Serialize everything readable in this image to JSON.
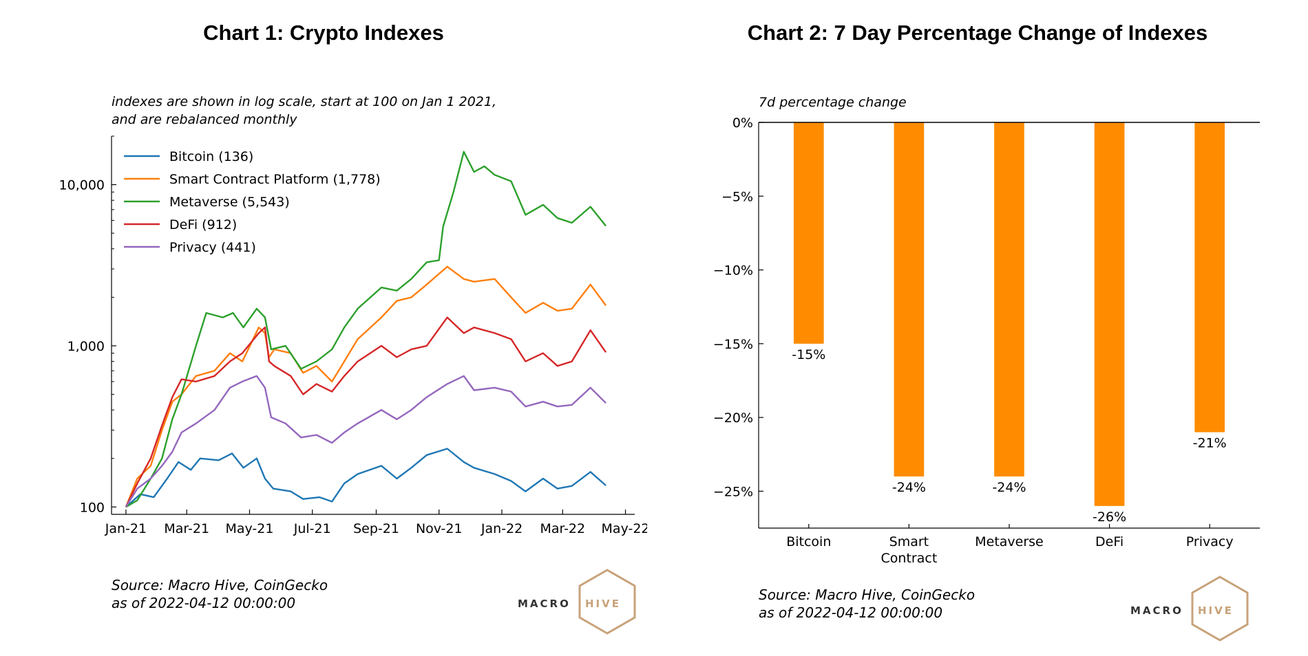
{
  "chart_data": [
    {
      "type": "line",
      "title": "Chart 1: Crypto Indexes",
      "subtitle": [
        "indexes are shown in log scale, start at 100 on Jan 1 2021,",
        "and are rebalanced monthly"
      ],
      "xlabel": "",
      "ylabel": "",
      "yscale": "log",
      "ylim": [
        90,
        20000
      ],
      "xlim": [
        "2020-12-18",
        "2022-05-10"
      ],
      "grid": false,
      "legend_position": "top-left",
      "x_ticks": [
        {
          "date": "2021-01-01",
          "label": "Jan-21"
        },
        {
          "date": "2021-03-01",
          "label": "Mar-21"
        },
        {
          "date": "2021-05-01",
          "label": "May-21"
        },
        {
          "date": "2021-07-01",
          "label": "Jul-21"
        },
        {
          "date": "2021-09-01",
          "label": "Sep-21"
        },
        {
          "date": "2021-11-01",
          "label": "Nov-21"
        },
        {
          "date": "2022-01-01",
          "label": "Jan-22"
        },
        {
          "date": "2022-03-01",
          "label": "Mar-22"
        },
        {
          "date": "2022-05-01",
          "label": "May-22"
        }
      ],
      "y_ticks": [
        {
          "value": 100,
          "label": "100"
        },
        {
          "value": 1000,
          "label": "1,000"
        },
        {
          "value": 10000,
          "label": "10,000"
        }
      ],
      "series": [
        {
          "name": "Bitcoin (136)",
          "color": "#1f77b4",
          "points": [
            [
              "2021-01-01",
              100
            ],
            [
              "2021-01-15",
              120
            ],
            [
              "2021-01-28",
              115
            ],
            [
              "2021-02-10",
              150
            ],
            [
              "2021-02-21",
              190
            ],
            [
              "2021-03-05",
              170
            ],
            [
              "2021-03-14",
              200
            ],
            [
              "2021-04-01",
              195
            ],
            [
              "2021-04-14",
              215
            ],
            [
              "2021-04-25",
              175
            ],
            [
              "2021-05-08",
              200
            ],
            [
              "2021-05-16",
              150
            ],
            [
              "2021-05-24",
              130
            ],
            [
              "2021-06-10",
              125
            ],
            [
              "2021-06-22",
              112
            ],
            [
              "2021-07-08",
              115
            ],
            [
              "2021-07-20",
              108
            ],
            [
              "2021-08-01",
              140
            ],
            [
              "2021-08-14",
              160
            ],
            [
              "2021-09-06",
              180
            ],
            [
              "2021-09-21",
              150
            ],
            [
              "2021-10-05",
              175
            ],
            [
              "2021-10-20",
              210
            ],
            [
              "2021-11-09",
              230
            ],
            [
              "2021-11-25",
              190
            ],
            [
              "2021-12-05",
              175
            ],
            [
              "2021-12-25",
              160
            ],
            [
              "2022-01-10",
              145
            ],
            [
              "2022-01-24",
              125
            ],
            [
              "2022-02-10",
              150
            ],
            [
              "2022-02-24",
              130
            ],
            [
              "2022-03-10",
              135
            ],
            [
              "2022-03-28",
              165
            ],
            [
              "2022-04-12",
              136
            ]
          ]
        },
        {
          "name": "Smart Contract Platform (1,778)",
          "color": "#ff7f0e",
          "points": [
            [
              "2021-01-01",
              100
            ],
            [
              "2021-01-12",
              150
            ],
            [
              "2021-01-25",
              180
            ],
            [
              "2021-02-05",
              300
            ],
            [
              "2021-02-15",
              450
            ],
            [
              "2021-02-24",
              500
            ],
            [
              "2021-03-10",
              650
            ],
            [
              "2021-03-28",
              700
            ],
            [
              "2021-04-12",
              900
            ],
            [
              "2021-04-24",
              800
            ],
            [
              "2021-05-10",
              1300
            ],
            [
              "2021-05-16",
              1200
            ],
            [
              "2021-05-20",
              850
            ],
            [
              "2021-05-25",
              950
            ],
            [
              "2021-06-10",
              900
            ],
            [
              "2021-06-22",
              680
            ],
            [
              "2021-07-05",
              750
            ],
            [
              "2021-07-20",
              600
            ],
            [
              "2021-08-01",
              800
            ],
            [
              "2021-08-14",
              1100
            ],
            [
              "2021-09-06",
              1500
            ],
            [
              "2021-09-21",
              1900
            ],
            [
              "2021-10-05",
              2000
            ],
            [
              "2021-10-20",
              2400
            ],
            [
              "2021-11-09",
              3100
            ],
            [
              "2021-11-25",
              2600
            ],
            [
              "2021-12-05",
              2500
            ],
            [
              "2021-12-25",
              2600
            ],
            [
              "2022-01-10",
              2000
            ],
            [
              "2022-01-24",
              1600
            ],
            [
              "2022-02-10",
              1850
            ],
            [
              "2022-02-24",
              1650
            ],
            [
              "2022-03-10",
              1700
            ],
            [
              "2022-03-28",
              2400
            ],
            [
              "2022-04-12",
              1778
            ]
          ]
        },
        {
          "name": "Metaverse (5,543)",
          "color": "#2ca02c",
          "points": [
            [
              "2021-01-01",
              100
            ],
            [
              "2021-01-12",
              110
            ],
            [
              "2021-01-25",
              150
            ],
            [
              "2021-02-05",
              200
            ],
            [
              "2021-02-15",
              350
            ],
            [
              "2021-02-24",
              500
            ],
            [
              "2021-03-10",
              1000
            ],
            [
              "2021-03-20",
              1600
            ],
            [
              "2021-04-05",
              1500
            ],
            [
              "2021-04-15",
              1600
            ],
            [
              "2021-04-25",
              1300
            ],
            [
              "2021-05-08",
              1700
            ],
            [
              "2021-05-16",
              1500
            ],
            [
              "2021-05-22",
              950
            ],
            [
              "2021-06-05",
              1000
            ],
            [
              "2021-06-20",
              720
            ],
            [
              "2021-07-05",
              800
            ],
            [
              "2021-07-20",
              950
            ],
            [
              "2021-08-01",
              1300
            ],
            [
              "2021-08-14",
              1700
            ],
            [
              "2021-09-06",
              2300
            ],
            [
              "2021-09-21",
              2200
            ],
            [
              "2021-10-05",
              2600
            ],
            [
              "2021-10-20",
              3300
            ],
            [
              "2021-11-01",
              3400
            ],
            [
              "2021-11-05",
              5500
            ],
            [
              "2021-11-15",
              9000
            ],
            [
              "2021-11-25",
              16000
            ],
            [
              "2021-12-05",
              12000
            ],
            [
              "2021-12-15",
              13000
            ],
            [
              "2021-12-25",
              11500
            ],
            [
              "2022-01-10",
              10500
            ],
            [
              "2022-01-24",
              6500
            ],
            [
              "2022-02-10",
              7500
            ],
            [
              "2022-02-24",
              6200
            ],
            [
              "2022-03-10",
              5800
            ],
            [
              "2022-03-28",
              7300
            ],
            [
              "2022-04-12",
              5543
            ]
          ]
        },
        {
          "name": "DeFi (912)",
          "color": "#d62728",
          "points": [
            [
              "2021-01-01",
              100
            ],
            [
              "2021-01-12",
              140
            ],
            [
              "2021-01-25",
              200
            ],
            [
              "2021-02-05",
              320
            ],
            [
              "2021-02-15",
              480
            ],
            [
              "2021-02-24",
              620
            ],
            [
              "2021-03-10",
              600
            ],
            [
              "2021-03-28",
              650
            ],
            [
              "2021-04-12",
              800
            ],
            [
              "2021-04-24",
              900
            ],
            [
              "2021-05-10",
              1200
            ],
            [
              "2021-05-16",
              1300
            ],
            [
              "2021-05-20",
              800
            ],
            [
              "2021-05-25",
              750
            ],
            [
              "2021-06-10",
              650
            ],
            [
              "2021-06-22",
              500
            ],
            [
              "2021-07-05",
              580
            ],
            [
              "2021-07-20",
              520
            ],
            [
              "2021-08-01",
              650
            ],
            [
              "2021-08-14",
              800
            ],
            [
              "2021-09-06",
              1000
            ],
            [
              "2021-09-21",
              850
            ],
            [
              "2021-10-05",
              950
            ],
            [
              "2021-10-20",
              1000
            ],
            [
              "2021-11-09",
              1500
            ],
            [
              "2021-11-25",
              1200
            ],
            [
              "2021-12-05",
              1300
            ],
            [
              "2021-12-25",
              1200
            ],
            [
              "2022-01-10",
              1100
            ],
            [
              "2022-01-24",
              800
            ],
            [
              "2022-02-10",
              900
            ],
            [
              "2022-02-24",
              750
            ],
            [
              "2022-03-10",
              800
            ],
            [
              "2022-03-28",
              1250
            ],
            [
              "2022-04-12",
              912
            ]
          ]
        },
        {
          "name": "Privacy (441)",
          "color": "#9467bd",
          "points": [
            [
              "2021-01-01",
              100
            ],
            [
              "2021-01-12",
              130
            ],
            [
              "2021-01-25",
              150
            ],
            [
              "2021-02-05",
              180
            ],
            [
              "2021-02-15",
              220
            ],
            [
              "2021-02-24",
              290
            ],
            [
              "2021-03-10",
              330
            ],
            [
              "2021-03-28",
              400
            ],
            [
              "2021-04-12",
              550
            ],
            [
              "2021-04-24",
              600
            ],
            [
              "2021-05-08",
              650
            ],
            [
              "2021-05-16",
              550
            ],
            [
              "2021-05-22",
              360
            ],
            [
              "2021-06-05",
              330
            ],
            [
              "2021-06-20",
              270
            ],
            [
              "2021-07-05",
              280
            ],
            [
              "2021-07-20",
              250
            ],
            [
              "2021-08-01",
              290
            ],
            [
              "2021-08-14",
              330
            ],
            [
              "2021-09-06",
              400
            ],
            [
              "2021-09-21",
              350
            ],
            [
              "2021-10-05",
              400
            ],
            [
              "2021-10-20",
              480
            ],
            [
              "2021-11-09",
              580
            ],
            [
              "2021-11-25",
              650
            ],
            [
              "2021-12-05",
              530
            ],
            [
              "2021-12-25",
              550
            ],
            [
              "2022-01-10",
              520
            ],
            [
              "2022-01-24",
              420
            ],
            [
              "2022-02-10",
              450
            ],
            [
              "2022-02-24",
              420
            ],
            [
              "2022-03-10",
              430
            ],
            [
              "2022-03-28",
              550
            ],
            [
              "2022-04-12",
              441
            ]
          ]
        }
      ],
      "source": [
        "Source: Macro Hive, CoinGecko",
        "as of 2022-04-12 00:00:00"
      ]
    },
    {
      "type": "bar",
      "title": "Chart 2: 7 Day Percentage Change of Indexes",
      "ylabel": "7d percentage change",
      "xlabel": "",
      "categories": [
        "Bitcoin",
        "Smart Contract",
        "Metaverse",
        "DeFi",
        "Privacy"
      ],
      "category_labels": [
        [
          "Bitcoin"
        ],
        [
          "Smart",
          "Contract"
        ],
        [
          "Metaverse"
        ],
        [
          "DeFi"
        ],
        [
          "Privacy"
        ]
      ],
      "values": [
        -15,
        -24,
        -24,
        -26,
        -21
      ],
      "data_labels": [
        "-15%",
        "-24%",
        "-24%",
        "-26%",
        "-21%"
      ],
      "ylim": [
        -27.5,
        0
      ],
      "y_ticks": [
        {
          "value": 0,
          "label": "0%"
        },
        {
          "value": -5,
          "label": "−5%"
        },
        {
          "value": -10,
          "label": "−10%"
        },
        {
          "value": -15,
          "label": "−15%"
        },
        {
          "value": -20,
          "label": "−20%"
        },
        {
          "value": -25,
          "label": "−25%"
        }
      ],
      "bar_color": "#ff8c00",
      "grid": false,
      "source": [
        "Source: Macro Hive, CoinGecko",
        "as of 2022-04-12 00:00:00"
      ]
    }
  ],
  "logo": {
    "left": "MACRO",
    "right": "HIVE",
    "hex_color": "#c8a27a"
  }
}
